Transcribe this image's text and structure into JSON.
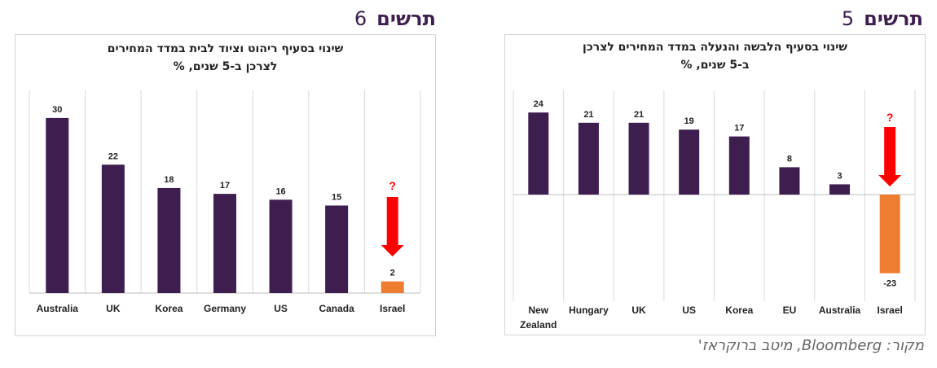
{
  "figures": [
    {
      "heading_word": "תרשים",
      "heading_num": "6",
      "title_lines": [
        "שינוי בסעיף ריהוט וציוד לבית במדד המחירים",
        "לצרכן ב-5 שנים, %"
      ]
    },
    {
      "heading_word": "תרשים",
      "heading_num": "5",
      "title_lines": [
        "שינוי בסעיף הלבשה והנעלה במדד המחירים לצרכן",
        "ב-5 שנים, %"
      ]
    }
  ],
  "source_note": "מקור: Bloomberg, מיטב ברוקראז'",
  "colors": {
    "bar": "#3e1d4f",
    "highlight": "#ed7d31",
    "arrow": "#ff0000",
    "heading": "#3e1d4f"
  },
  "chart_data": [
    {
      "type": "bar",
      "categories": [
        "Australia",
        "UK",
        "Korea",
        "Germany",
        "US",
        "Canada",
        "Israel"
      ],
      "values": [
        30,
        22,
        18,
        17,
        16,
        15,
        2
      ],
      "highlight": "Israel",
      "annotation": "?",
      "annotation_icon": "down-arrow-icon",
      "ylim": [
        0,
        30
      ],
      "grid": "vertical-separators"
    },
    {
      "type": "bar",
      "categories": [
        "New Zealand",
        "Hungary",
        "UK",
        "US",
        "Korea",
        "EU",
        "Australia",
        "Israel"
      ],
      "values": [
        24,
        21,
        21,
        19,
        17,
        8,
        3,
        -23
      ],
      "highlight": "Israel",
      "annotation": "?",
      "annotation_icon": "down-arrow-icon",
      "ylim": [
        -23,
        24
      ],
      "grid": "vertical-separators"
    }
  ]
}
